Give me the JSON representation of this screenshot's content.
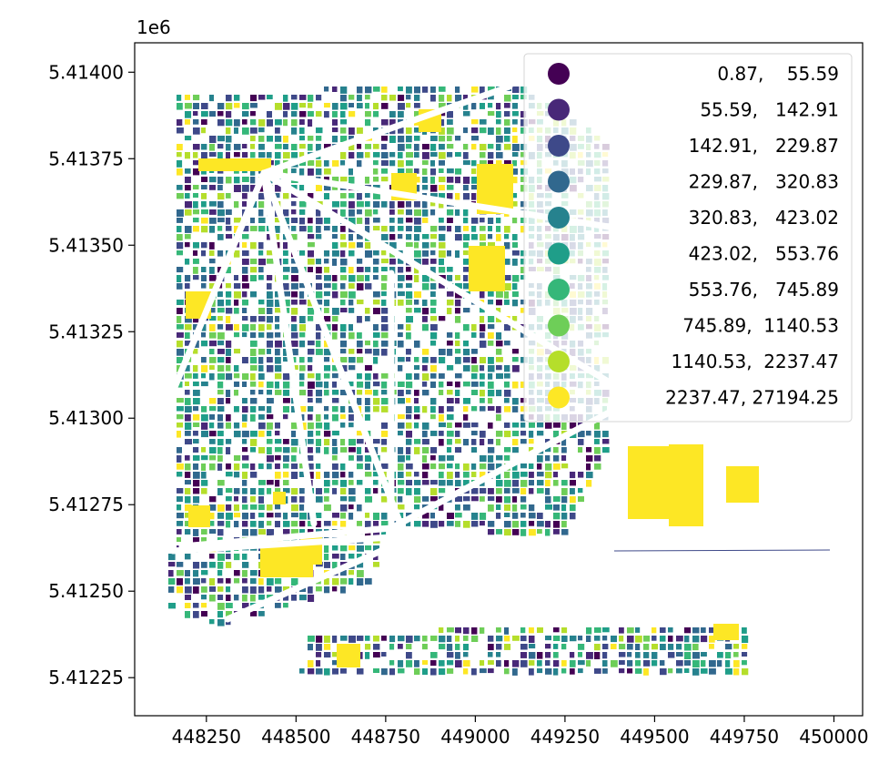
{
  "chart_data": {
    "type": "choropleth_map",
    "title": "",
    "xlabel": "",
    "ylabel": "",
    "y_offset_label": "1e6",
    "x_ticks": [
      "448250",
      "448500",
      "448750",
      "449000",
      "449250",
      "449500",
      "449750",
      "450000"
    ],
    "y_ticks": [
      "5.41225",
      "5.41250",
      "5.41275",
      "5.41300",
      "5.41325",
      "5.41350",
      "5.41375",
      "5.41400"
    ],
    "xlim": [
      448050,
      450080
    ],
    "ylim": [
      5412140,
      5414085
    ],
    "legend_position": "top-right",
    "colormap": "viridis",
    "classes": [
      {
        "label": "0.87,    55.59",
        "color": "#440154"
      },
      {
        "label": "55.59,   142.91",
        "color": "#482878"
      },
      {
        "label": "142.91,   229.87",
        "color": "#3e4989"
      },
      {
        "label": "229.87,   320.83",
        "color": "#31688e"
      },
      {
        "label": "320.83,   423.02",
        "color": "#26828e"
      },
      {
        "label": "423.02,   553.76",
        "color": "#1f9e89"
      },
      {
        "label": "553.76,   745.89",
        "color": "#35b779"
      },
      {
        "label": "745.89,  1140.53",
        "color": "#6ece58"
      },
      {
        "label": "1140.53,  2237.47",
        "color": "#b5de2b"
      },
      {
        "label": "2237.47, 27194.25",
        "color": "#fde725"
      }
    ]
  }
}
